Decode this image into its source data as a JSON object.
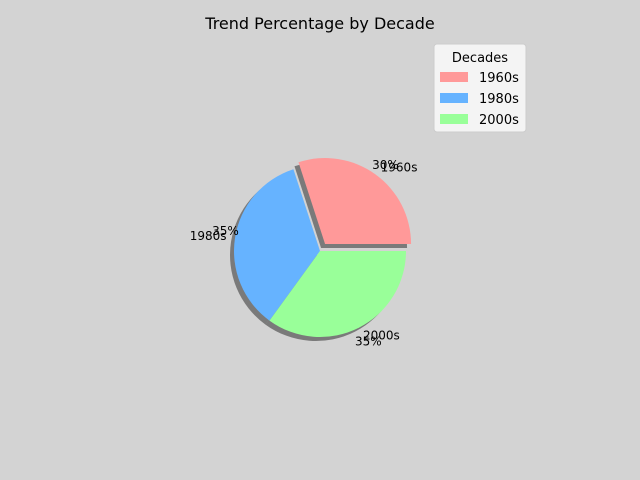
{
  "chart_data": {
    "type": "pie",
    "title": "Trend Percentage by Decade",
    "categories": [
      "1960s",
      "1980s",
      "2000s"
    ],
    "values": [
      30,
      35,
      35
    ],
    "value_labels": [
      "30%",
      "35%",
      "35%"
    ],
    "colors": [
      "#ff9999",
      "#66b3ff",
      "#99ff99"
    ],
    "explode": [
      0.1,
      0,
      0
    ],
    "start_angle_deg": 0,
    "shadow": true,
    "legend": {
      "title": "Decades",
      "position": "top-right"
    },
    "background": "#d3d3d3"
  }
}
